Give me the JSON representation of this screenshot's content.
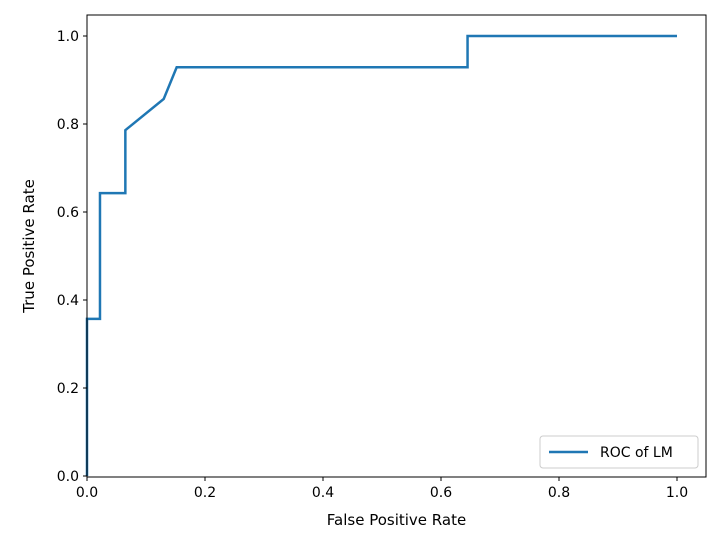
{
  "chart_data": {
    "type": "line",
    "title": "",
    "xlabel": "False Positive Rate",
    "ylabel": "True Positive Rate",
    "xlim": [
      0.0,
      1.0
    ],
    "ylim": [
      0.0,
      1.0
    ],
    "x_ticks": [
      "0.0",
      "0.2",
      "0.4",
      "0.6",
      "0.8",
      "1.0"
    ],
    "y_ticks": [
      "0.0",
      "0.2",
      "0.4",
      "0.6",
      "0.8",
      "1.0"
    ],
    "grid": false,
    "legend_position": "lower-right",
    "series": [
      {
        "name": "ROC of LM",
        "color": "#1f77b4",
        "x": [
          0.0,
          0.0,
          0.022,
          0.022,
          0.065,
          0.065,
          0.13,
          0.152,
          0.152,
          0.645,
          0.645,
          1.0
        ],
        "y": [
          0.0,
          0.357,
          0.357,
          0.643,
          0.643,
          0.786,
          0.857,
          0.929,
          0.929,
          0.929,
          1.0,
          1.0
        ]
      }
    ]
  }
}
